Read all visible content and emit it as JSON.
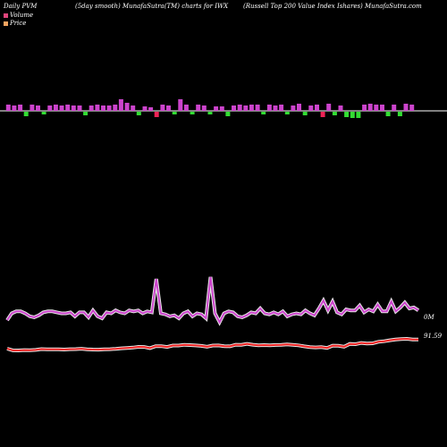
{
  "header": {
    "left": "Daily PVM",
    "middle": "(5day smooth) MunafaSutra(TM) charts for IWX",
    "right": "(Russell Top 200 Value Index Ishares) MunafaSutra.com"
  },
  "legend": [
    {
      "label": "Volume",
      "color": "#e0457b"
    },
    {
      "label": "Price",
      "color": "#f4a460"
    }
  ],
  "colors": {
    "background": "#000000",
    "volume_up": "#cc44cc",
    "volume_down_green": "#33dd33",
    "volume_down_red": "#ee2255",
    "volume_line": "#cc44cc",
    "price_line": "#ee2222",
    "baseline": "#ffffff"
  },
  "chart_data": {
    "type": "line",
    "series": [
      {
        "name": "Volume",
        "values": [
          38,
          45,
          47,
          47,
          45,
          42,
          41,
          43,
          46,
          47,
          47,
          46,
          45,
          45,
          46,
          42,
          46,
          46,
          41,
          48,
          42,
          40,
          46,
          45,
          48,
          46,
          45,
          48,
          47,
          48,
          45,
          47,
          46,
          80,
          45,
          44,
          42,
          43,
          40,
          45,
          47,
          42,
          45,
          44,
          40,
          82,
          45,
          36,
          45,
          47,
          46,
          42,
          41,
          43,
          46,
          45,
          50,
          45,
          44,
          46,
          44,
          47,
          42,
          44,
          45,
          44,
          48,
          45,
          43,
          50,
          58,
          48,
          57,
          46,
          44,
          49,
          48,
          48,
          53,
          46,
          49,
          47,
          54,
          47,
          47,
          57,
          47,
          51,
          56,
          50,
          51,
          48
        ],
        "label": "0M"
      },
      {
        "name": "Price",
        "values": [
          10.0,
          8.4,
          8.3,
          8.7,
          8.5,
          8.8,
          9.6,
          9.3,
          9.4,
          9.4,
          9.2,
          9.5,
          9.6,
          9.9,
          9.4,
          9.2,
          9.1,
          9.3,
          9.5,
          9.8,
          10.3,
          10.7,
          11.0,
          11.7,
          11.6,
          10.5,
          12.3,
          12.3,
          11.6,
          12.9,
          12.9,
          13.6,
          13.3,
          13.0,
          12.6,
          11.8,
          12.9,
          13.0,
          12.3,
          12.2,
          13.7,
          13.6,
          14.5,
          13.7,
          13.1,
          13.3,
          13.2,
          13.4,
          13.5,
          14.0,
          13.5,
          13.1,
          12.2,
          11.5,
          11.2,
          11.4,
          10.7,
          12.8,
          12.7,
          11.8,
          14.4,
          14.2,
          15.3,
          14.8,
          15.0,
          16.4,
          16.9,
          17.8,
          18.5,
          19.0,
          19.2,
          18.6,
          18.6
        ],
        "label": "91.59"
      }
    ],
    "bars": [
      {
        "v": 7,
        "c": "up"
      },
      {
        "v": 6,
        "c": "up"
      },
      {
        "v": 7,
        "c": "up"
      },
      {
        "v": -5,
        "c": "green"
      },
      {
        "v": 7,
        "c": "up"
      },
      {
        "v": 6,
        "c": "up"
      },
      {
        "v": -3,
        "c": "green"
      },
      {
        "v": 6,
        "c": "up"
      },
      {
        "v": 7,
        "c": "up"
      },
      {
        "v": 6,
        "c": "up"
      },
      {
        "v": 7,
        "c": "up"
      },
      {
        "v": 6,
        "c": "up"
      },
      {
        "v": 6,
        "c": "up"
      },
      {
        "v": -4,
        "c": "green"
      },
      {
        "v": 6,
        "c": "up"
      },
      {
        "v": 7,
        "c": "up"
      },
      {
        "v": 6,
        "c": "up"
      },
      {
        "v": 6,
        "c": "up"
      },
      {
        "v": 7,
        "c": "up"
      },
      {
        "v": 13,
        "c": "up"
      },
      {
        "v": 9,
        "c": "up"
      },
      {
        "v": 6,
        "c": "up"
      },
      {
        "v": -4,
        "c": "green"
      },
      {
        "v": 5,
        "c": "up"
      },
      {
        "v": 4,
        "c": "up"
      },
      {
        "v": -6,
        "c": "red"
      },
      {
        "v": 7,
        "c": "up"
      },
      {
        "v": 6,
        "c": "up"
      },
      {
        "v": -3,
        "c": "green"
      },
      {
        "v": 13,
        "c": "up"
      },
      {
        "v": 7,
        "c": "up"
      },
      {
        "v": -3,
        "c": "green"
      },
      {
        "v": 7,
        "c": "up"
      },
      {
        "v": 6,
        "c": "up"
      },
      {
        "v": -3,
        "c": "green"
      },
      {
        "v": 5,
        "c": "up"
      },
      {
        "v": 5,
        "c": "up"
      },
      {
        "v": -5,
        "c": "green"
      },
      {
        "v": 6,
        "c": "up"
      },
      {
        "v": 7,
        "c": "up"
      },
      {
        "v": 6,
        "c": "up"
      },
      {
        "v": 7,
        "c": "up"
      },
      {
        "v": 7,
        "c": "up"
      },
      {
        "v": -3,
        "c": "green"
      },
      {
        "v": 7,
        "c": "up"
      },
      {
        "v": 6,
        "c": "up"
      },
      {
        "v": 7,
        "c": "up"
      },
      {
        "v": -3,
        "c": "green"
      },
      {
        "v": 6,
        "c": "up"
      },
      {
        "v": 8,
        "c": "up"
      },
      {
        "v": -4,
        "c": "green"
      },
      {
        "v": 6,
        "c": "up"
      },
      {
        "v": 7,
        "c": "up"
      },
      {
        "v": -6,
        "c": "red"
      },
      {
        "v": 8,
        "c": "up"
      },
      {
        "v": -4,
        "c": "green"
      },
      {
        "v": 6,
        "c": "up"
      },
      {
        "v": -6,
        "c": "green"
      },
      {
        "v": -7,
        "c": "green"
      },
      {
        "v": -7,
        "c": "green"
      },
      {
        "v": 7,
        "c": "up"
      },
      {
        "v": 8,
        "c": "up"
      },
      {
        "v": 7,
        "c": "up"
      },
      {
        "v": 7,
        "c": "up"
      },
      {
        "v": -5,
        "c": "green"
      },
      {
        "v": 7,
        "c": "up"
      },
      {
        "v": -5,
        "c": "green"
      },
      {
        "v": 8,
        "c": "up"
      },
      {
        "v": 7,
        "c": "up"
      }
    ]
  }
}
